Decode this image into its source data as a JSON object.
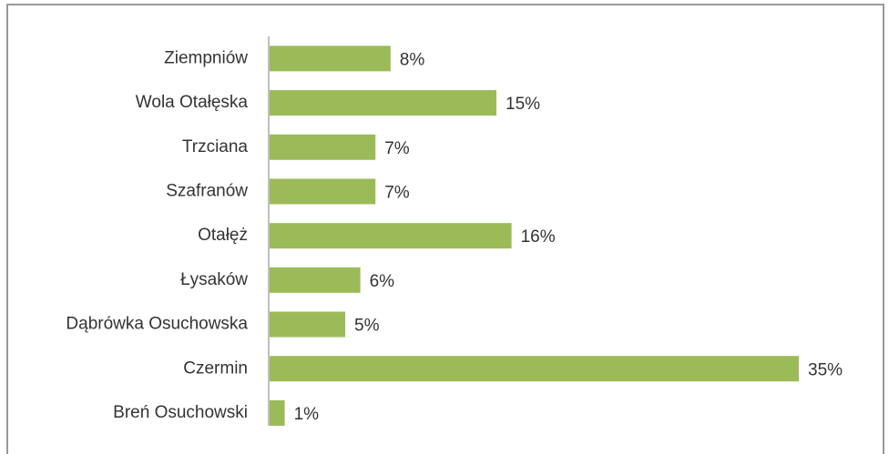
{
  "chart_data": {
    "type": "bar",
    "orientation": "horizontal",
    "categories": [
      "Ziempniów",
      "Wola Otałęska",
      "Trzciana",
      "Szafranów",
      "Otałęż",
      "Łysaków",
      "Dąbrówka Osuchowska",
      "Czermin",
      "Breń Osuchowski"
    ],
    "values": [
      8,
      15,
      7,
      7,
      16,
      6,
      5,
      35,
      1
    ],
    "value_labels": [
      "8%",
      "15%",
      "7%",
      "7%",
      "16%",
      "6%",
      "5%",
      "35%",
      "1%"
    ],
    "color": "#9bbb59"
  }
}
